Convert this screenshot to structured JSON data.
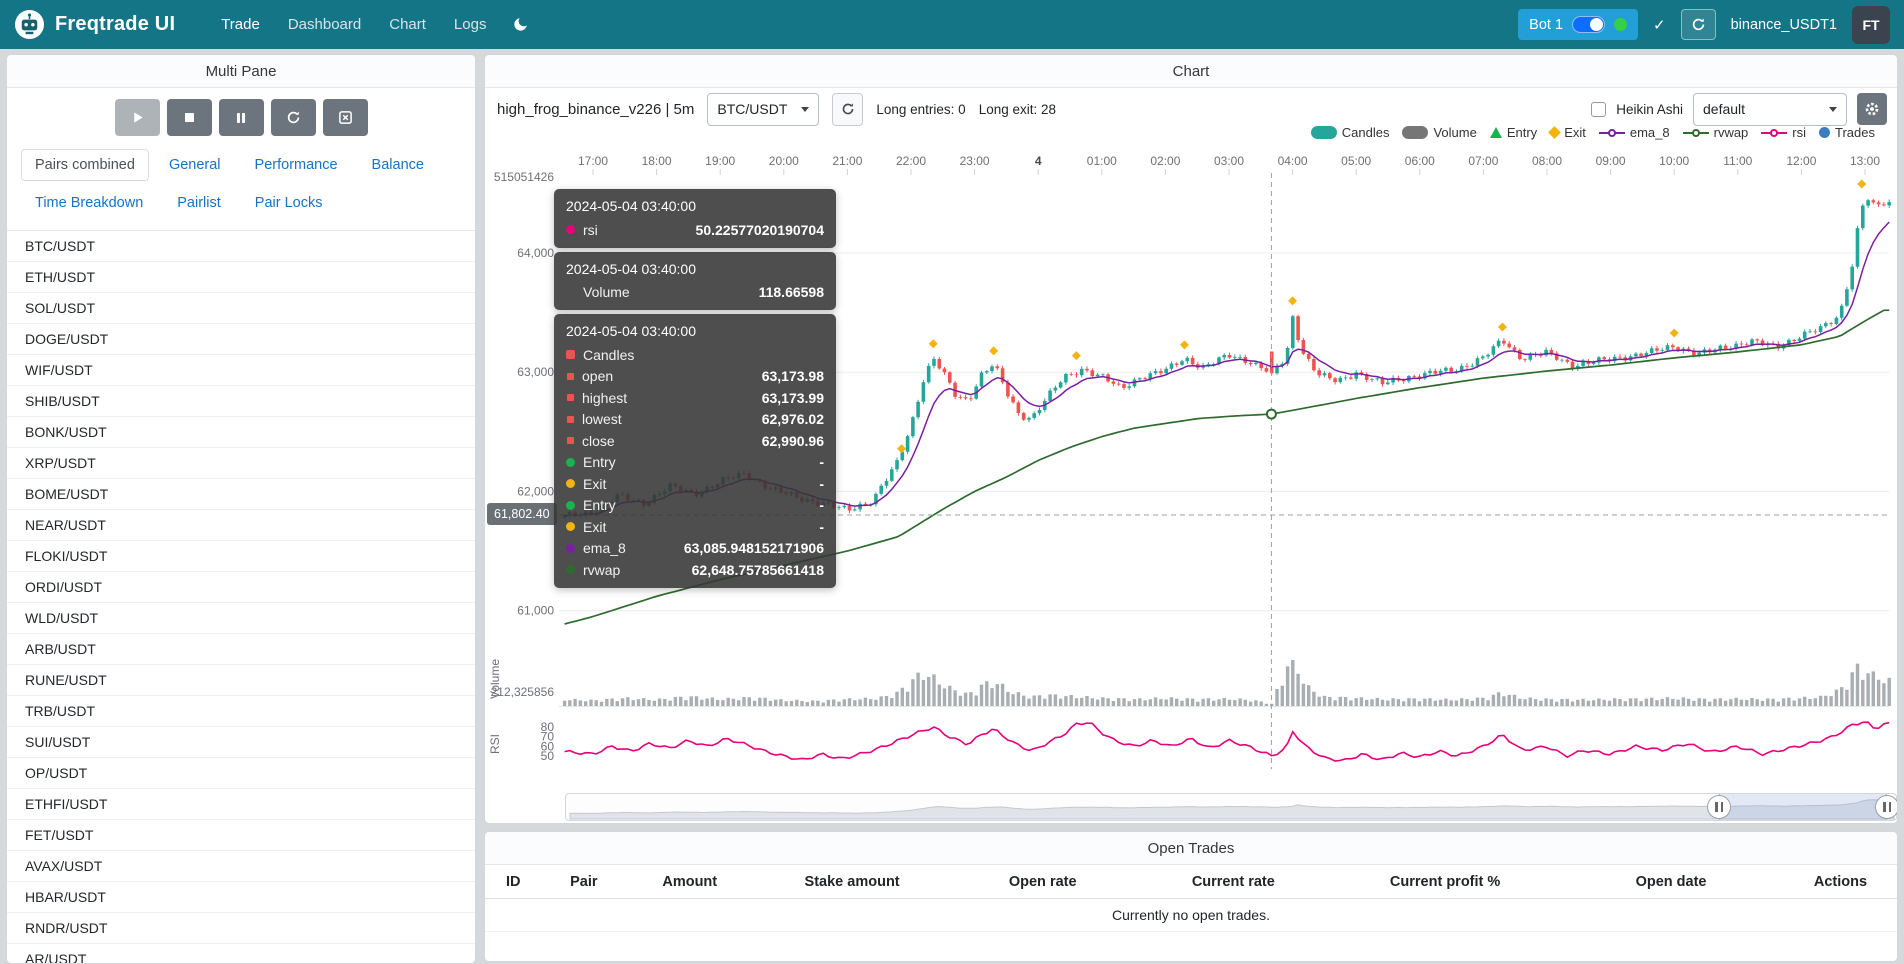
{
  "navbar": {
    "brand": "Freqtrade UI",
    "links": [
      {
        "label": "Trade",
        "active": true
      },
      {
        "label": "Dashboard",
        "active": false
      },
      {
        "label": "Chart",
        "active": false
      },
      {
        "label": "Logs",
        "active": false
      }
    ],
    "bot": {
      "name": "Bot 1",
      "toggle_on": true,
      "online": true
    },
    "check_icon": "✓",
    "exchange_account": "binance_USDT1",
    "avatar": "FT",
    "colors": {
      "navbar_bg": "#147587",
      "bot_pill": "#239fd8",
      "toggle": "#0d6efd",
      "online_dot": "#35d048"
    }
  },
  "multi_pane": {
    "title": "Multi Pane",
    "controls": [
      {
        "name": "start",
        "icon": "play-icon",
        "disabled": true
      },
      {
        "name": "stop",
        "icon": "stop-icon",
        "disabled": false
      },
      {
        "name": "pause",
        "icon": "pause-icon",
        "disabled": false
      },
      {
        "name": "reload-config",
        "icon": "reload-icon",
        "disabled": false
      },
      {
        "name": "cancel-open-orders",
        "icon": "x-square-icon",
        "disabled": false
      }
    ],
    "tabs_row1": [
      {
        "label": "Pairs combined",
        "active": true
      },
      {
        "label": "General",
        "active": false
      },
      {
        "label": "Performance",
        "active": false
      },
      {
        "label": "Balance",
        "active": false
      }
    ],
    "tabs_row2": [
      {
        "label": "Time Breakdown",
        "active": false
      },
      {
        "label": "Pairlist",
        "active": false
      },
      {
        "label": "Pair Locks",
        "active": false
      }
    ],
    "pairs": [
      "BTC/USDT",
      "ETH/USDT",
      "SOL/USDT",
      "DOGE/USDT",
      "WIF/USDT",
      "SHIB/USDT",
      "BONK/USDT",
      "XRP/USDT",
      "BOME/USDT",
      "NEAR/USDT",
      "FLOKI/USDT",
      "ORDI/USDT",
      "WLD/USDT",
      "ARB/USDT",
      "RUNE/USDT",
      "TRB/USDT",
      "SUI/USDT",
      "OP/USDT",
      "ETHFI/USDT",
      "FET/USDT",
      "AVAX/USDT",
      "HBAR/USDT",
      "RNDR/USDT",
      "AR/USDT"
    ]
  },
  "chart_panel": {
    "title": "Chart",
    "strategy_label": "high_frog_binance_v226 | 5m",
    "pair_select": "BTC/USDT",
    "long_entries": "Long entries: 0",
    "long_exit": "Long exit: 28",
    "heikin_ashi_label": "Heikin Ashi",
    "plot_config_select": "default",
    "legend": [
      {
        "label": "Candles",
        "marker": "roundrect",
        "color": "#26a69a"
      },
      {
        "label": "Volume",
        "marker": "roundrect",
        "color": "#767676"
      },
      {
        "label": "Entry",
        "marker": "triangle",
        "color": "#17b34f"
      },
      {
        "label": "Exit",
        "marker": "diamond",
        "color": "#f3b40f"
      },
      {
        "label": "ema_8",
        "marker": "linecircle",
        "color": "#7b1fa2"
      },
      {
        "label": "rvwap",
        "marker": "linecircle",
        "color": "#2f6b2f"
      },
      {
        "label": "rsi",
        "marker": "linecircle",
        "color": "#e6007a"
      },
      {
        "label": "Trades",
        "marker": "circle",
        "color": "#3d7dbf"
      }
    ]
  },
  "axis_pointer": {
    "price_label": "61,802.40"
  },
  "tooltip": {
    "sections": [
      {
        "datetime": "2024-05-04 03:40:00",
        "rows": [
          {
            "marker": "circle",
            "color": "#e6007a",
            "label": "rsi",
            "value": "50.22577020190704"
          }
        ]
      },
      {
        "datetime": "2024-05-04 03:40:00",
        "rows": [
          {
            "marker": "none",
            "color": "",
            "label": "Volume",
            "value": "118.66598"
          }
        ]
      },
      {
        "datetime": "2024-05-04 03:40:00",
        "rows": [
          {
            "marker": "square",
            "color": "#ef5350",
            "label": "Candles",
            "value": ""
          },
          {
            "marker": "dot-sm",
            "color": "#ef5350",
            "label": "open",
            "value": "63,173.98"
          },
          {
            "marker": "dot-sm",
            "color": "#ef5350",
            "label": "highest",
            "value": "63,173.99"
          },
          {
            "marker": "dot-sm",
            "color": "#ef5350",
            "label": "lowest",
            "value": "62,976.02"
          },
          {
            "marker": "dot-sm",
            "color": "#ef5350",
            "label": "close",
            "value": "62,990.96"
          },
          {
            "marker": "circle",
            "color": "#17b34f",
            "label": "Entry",
            "value": "-"
          },
          {
            "marker": "circle",
            "color": "#f3b40f",
            "label": "Exit",
            "value": "-"
          },
          {
            "marker": "circle",
            "color": "#17b34f",
            "label": "Entry",
            "value": "-"
          },
          {
            "marker": "circle",
            "color": "#f3b40f",
            "label": "Exit",
            "value": "-"
          },
          {
            "marker": "circle",
            "color": "#7b1fa2",
            "label": "ema_8",
            "value": "63,085.948152171906"
          },
          {
            "marker": "circle",
            "color": "#2f6b2f",
            "label": "rvwap",
            "value": "62,648.75785661418"
          }
        ]
      }
    ]
  },
  "chart_data": {
    "type": "candlestick",
    "pair": "BTC/USDT",
    "timeframe": "5m",
    "x_axis_labels": [
      "17:00",
      "18:00",
      "19:00",
      "20:00",
      "21:00",
      "22:00",
      "23:00",
      "4",
      "01:00",
      "02:00",
      "03:00",
      "04:00",
      "05:00",
      "06:00",
      "07:00",
      "08:00",
      "09:00",
      "10:00",
      "11:00",
      "12:00",
      "13:00"
    ],
    "price_ticks": [
      {
        "value": 64000,
        "label": "64,000"
      },
      {
        "value": 63000,
        "label": "63,000"
      },
      {
        "value": 62000,
        "label": "62,000"
      },
      {
        "value": 61000,
        "label": "61,000"
      }
    ],
    "y_axis_top_label": "515051426",
    "volume_axis_label": "212,325856",
    "axis_names": {
      "volume": "Volume",
      "rsi": "RSI"
    },
    "rsi_ticks": [
      80,
      70,
      60,
      50
    ],
    "price_path": [
      [
        -0.5,
        61780
      ],
      [
        0,
        61830
      ],
      [
        0.4,
        61960
      ],
      [
        0.8,
        61900
      ],
      [
        1.2,
        62040
      ],
      [
        1.6,
        61980
      ],
      [
        2.0,
        62080
      ],
      [
        2.4,
        62150
      ],
      [
        2.8,
        62020
      ],
      [
        3.2,
        61950
      ],
      [
        3.6,
        61900
      ],
      [
        4.0,
        61840
      ],
      [
        4.4,
        61930
      ],
      [
        4.8,
        62250
      ],
      [
        5.0,
        62550
      ],
      [
        5.2,
        62950
      ],
      [
        5.35,
        63120
      ],
      [
        5.5,
        63000
      ],
      [
        5.7,
        62800
      ],
      [
        5.9,
        62760
      ],
      [
        6.1,
        62980
      ],
      [
        6.3,
        63070
      ],
      [
        6.5,
        62830
      ],
      [
        6.7,
        62640
      ],
      [
        6.9,
        62620
      ],
      [
        7.1,
        62760
      ],
      [
        7.4,
        62950
      ],
      [
        7.7,
        63030
      ],
      [
        8.0,
        62960
      ],
      [
        8.3,
        62860
      ],
      [
        8.6,
        62960
      ],
      [
        9.0,
        63010
      ],
      [
        9.3,
        63120
      ],
      [
        9.6,
        63040
      ],
      [
        10.0,
        63140
      ],
      [
        10.3,
        63100
      ],
      [
        10.67,
        62990
      ],
      [
        10.9,
        63120
      ],
      [
        11.0,
        63470
      ],
      [
        11.15,
        63180
      ],
      [
        11.4,
        62980
      ],
      [
        11.7,
        62920
      ],
      [
        12.0,
        63000
      ],
      [
        12.4,
        62900
      ],
      [
        12.8,
        62960
      ],
      [
        13.2,
        62990
      ],
      [
        13.6,
        63030
      ],
      [
        14.0,
        63120
      ],
      [
        14.3,
        63270
      ],
      [
        14.6,
        63120
      ],
      [
        15.0,
        63160
      ],
      [
        15.4,
        63060
      ],
      [
        15.8,
        63090
      ],
      [
        16.2,
        63130
      ],
      [
        16.6,
        63160
      ],
      [
        17.0,
        63220
      ],
      [
        17.4,
        63150
      ],
      [
        17.8,
        63210
      ],
      [
        18.2,
        63260
      ],
      [
        18.6,
        63210
      ],
      [
        19.0,
        63310
      ],
      [
        19.3,
        63360
      ],
      [
        19.6,
        63480
      ],
      [
        19.8,
        63900
      ],
      [
        19.9,
        64250
      ],
      [
        20.0,
        64480
      ],
      [
        20.15,
        64380
      ],
      [
        20.3,
        64420
      ]
    ],
    "rvwap_path": [
      [
        -0.5,
        60880
      ],
      [
        0,
        60950
      ],
      [
        1,
        61120
      ],
      [
        2,
        61260
      ],
      [
        3,
        61380
      ],
      [
        4,
        61500
      ],
      [
        4.8,
        61620
      ],
      [
        5.5,
        61850
      ],
      [
        6,
        62000
      ],
      [
        6.5,
        62120
      ],
      [
        7,
        62260
      ],
      [
        7.5,
        62370
      ],
      [
        8,
        62460
      ],
      [
        8.5,
        62530
      ],
      [
        9,
        62570
      ],
      [
        9.5,
        62610
      ],
      [
        10,
        62630
      ],
      [
        10.67,
        62648.76
      ],
      [
        11,
        62680
      ],
      [
        11.5,
        62730
      ],
      [
        12,
        62780
      ],
      [
        13,
        62870
      ],
      [
        14,
        62950
      ],
      [
        15,
        63010
      ],
      [
        16,
        63060
      ],
      [
        17,
        63120
      ],
      [
        18,
        63170
      ],
      [
        19,
        63230
      ],
      [
        19.6,
        63300
      ],
      [
        20,
        63430
      ],
      [
        20.3,
        63520
      ]
    ],
    "rsi_path": [
      [
        -0.5,
        55
      ],
      [
        0,
        52
      ],
      [
        0.3,
        60
      ],
      [
        0.6,
        55
      ],
      [
        0.9,
        63
      ],
      [
        1.2,
        58
      ],
      [
        1.5,
        66
      ],
      [
        1.8,
        60
      ],
      [
        2.1,
        68
      ],
      [
        2.4,
        62
      ],
      [
        2.7,
        55
      ],
      [
        3.0,
        50
      ],
      [
        3.3,
        46
      ],
      [
        3.6,
        52
      ],
      [
        3.9,
        47
      ],
      [
        4.2,
        52
      ],
      [
        4.5,
        58
      ],
      [
        4.8,
        66
      ],
      [
        5.1,
        74
      ],
      [
        5.35,
        80
      ],
      [
        5.6,
        70
      ],
      [
        5.9,
        62
      ],
      [
        6.1,
        72
      ],
      [
        6.3,
        78
      ],
      [
        6.6,
        64
      ],
      [
        6.9,
        55
      ],
      [
        7.1,
        62
      ],
      [
        7.4,
        72
      ],
      [
        7.6,
        83
      ],
      [
        7.8,
        85
      ],
      [
        8.0,
        74
      ],
      [
        8.2,
        66
      ],
      [
        8.5,
        60
      ],
      [
        8.8,
        66
      ],
      [
        9.1,
        60
      ],
      [
        9.4,
        68
      ],
      [
        9.7,
        58
      ],
      [
        10.0,
        66
      ],
      [
        10.3,
        60
      ],
      [
        10.67,
        50.2
      ],
      [
        10.9,
        58
      ],
      [
        11.0,
        76
      ],
      [
        11.2,
        60
      ],
      [
        11.5,
        48
      ],
      [
        11.8,
        45
      ],
      [
        12.1,
        52
      ],
      [
        12.4,
        46
      ],
      [
        12.7,
        53
      ],
      [
        13.0,
        49
      ],
      [
        13.3,
        55
      ],
      [
        13.6,
        50
      ],
      [
        14.0,
        60
      ],
      [
        14.3,
        72
      ],
      [
        14.6,
        56
      ],
      [
        15.0,
        60
      ],
      [
        15.3,
        50
      ],
      [
        15.6,
        56
      ],
      [
        16.0,
        52
      ],
      [
        16.4,
        60
      ],
      [
        16.8,
        56
      ],
      [
        17.2,
        63
      ],
      [
        17.6,
        54
      ],
      [
        18.0,
        60
      ],
      [
        18.4,
        52
      ],
      [
        18.8,
        58
      ],
      [
        19.2,
        64
      ],
      [
        19.5,
        70
      ],
      [
        19.8,
        82
      ],
      [
        20.0,
        86
      ],
      [
        20.15,
        78
      ],
      [
        20.3,
        83
      ]
    ],
    "volume_path": [
      [
        -0.5,
        300
      ],
      [
        0,
        250
      ],
      [
        0.5,
        350
      ],
      [
        1,
        280
      ],
      [
        1.5,
        420
      ],
      [
        2,
        300
      ],
      [
        2.5,
        380
      ],
      [
        3,
        260
      ],
      [
        3.5,
        220
      ],
      [
        4,
        300
      ],
      [
        4.5,
        350
      ],
      [
        4.8,
        600
      ],
      [
        5.0,
        1100
      ],
      [
        5.2,
        1500
      ],
      [
        5.35,
        1250
      ],
      [
        5.6,
        800
      ],
      [
        5.9,
        500
      ],
      [
        6.1,
        900
      ],
      [
        6.3,
        1100
      ],
      [
        6.6,
        600
      ],
      [
        6.9,
        400
      ],
      [
        7.1,
        500
      ],
      [
        7.4,
        450
      ],
      [
        7.7,
        400
      ],
      [
        8,
        350
      ],
      [
        8.5,
        300
      ],
      [
        9,
        350
      ],
      [
        9.5,
        300
      ],
      [
        10,
        320
      ],
      [
        10.3,
        280
      ],
      [
        10.67,
        119
      ],
      [
        11.0,
        2326
      ],
      [
        11.2,
        900
      ],
      [
        11.5,
        400
      ],
      [
        12,
        350
      ],
      [
        12.5,
        300
      ],
      [
        13,
        320
      ],
      [
        13.5,
        280
      ],
      [
        14,
        350
      ],
      [
        14.3,
        600
      ],
      [
        14.6,
        350
      ],
      [
        15,
        300
      ],
      [
        15.5,
        280
      ],
      [
        16,
        300
      ],
      [
        16.5,
        320
      ],
      [
        17,
        350
      ],
      [
        17.5,
        300
      ],
      [
        18,
        320
      ],
      [
        18.5,
        300
      ],
      [
        19,
        350
      ],
      [
        19.3,
        400
      ],
      [
        19.6,
        700
      ],
      [
        19.8,
        1400
      ],
      [
        19.9,
        1800
      ],
      [
        20.0,
        1600
      ],
      [
        20.1,
        1300
      ],
      [
        20.2,
        1500
      ],
      [
        20.3,
        1100
      ]
    ],
    "exit_markers": [
      [
        4.85,
        62300
      ],
      [
        5.35,
        63180
      ],
      [
        6.3,
        63120
      ],
      [
        7.6,
        63080
      ],
      [
        9.3,
        63170
      ],
      [
        11.0,
        63540
      ],
      [
        14.3,
        63320
      ],
      [
        17.0,
        63270
      ],
      [
        19.95,
        64520
      ]
    ],
    "crosshair": {
      "t": 10.667,
      "price": 61802.4,
      "datetime": "2024-05-04 03:40:00"
    },
    "hovered_candle": {
      "datetime": "2024-05-04 03:40:00",
      "open": 63173.98,
      "highest": 63173.99,
      "lowest": 62976.02,
      "close": 62990.96,
      "volume": 118.66598,
      "rsi": 50.22577020190704,
      "ema_8": 63085.948152171906,
      "rvwap": 62648.75785661418
    },
    "colors": {
      "up": "#26a69a",
      "down": "#ef5350",
      "volume_bar": "#9aa0a5",
      "ema_8": "#7b1fa2",
      "rvwap": "#2f6b2f",
      "rsi": "#e6007a"
    }
  },
  "open_trades": {
    "title": "Open Trades",
    "columns": [
      "ID",
      "Pair",
      "Amount",
      "Stake amount",
      "Open rate",
      "Current rate",
      "Current profit %",
      "Open date",
      "Actions"
    ],
    "empty_message": "Currently no open trades."
  }
}
